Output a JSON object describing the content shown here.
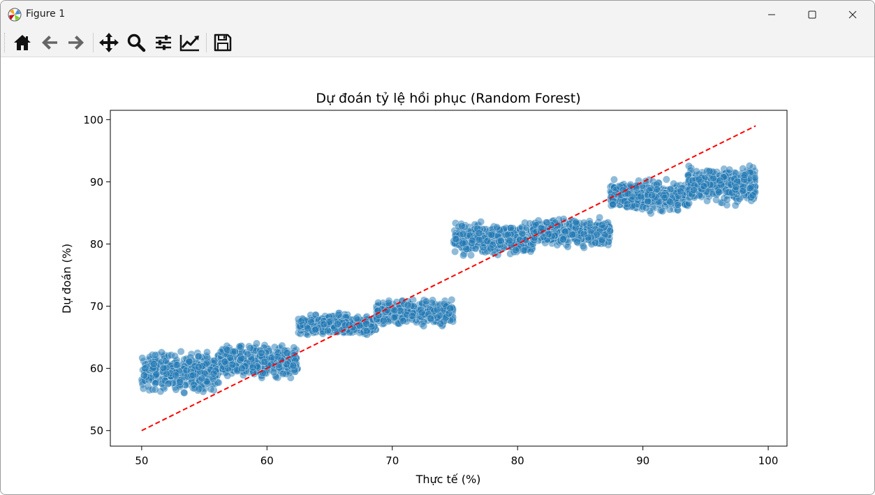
{
  "window": {
    "title": "Figure 1",
    "controls": {
      "minimize": "minimize",
      "maximize": "maximize",
      "close": "close"
    }
  },
  "toolbar": {
    "buttons": [
      {
        "name": "home-button",
        "icon": "home-icon"
      },
      {
        "name": "back-button",
        "icon": "arrow-left-icon"
      },
      {
        "name": "forward-button",
        "icon": "arrow-right-icon"
      },
      {
        "name": "pan-button",
        "icon": "move-icon"
      },
      {
        "name": "zoom-button",
        "icon": "magnifier-icon"
      },
      {
        "name": "configure-subplots-button",
        "icon": "sliders-icon"
      },
      {
        "name": "edit-axis-button",
        "icon": "line-chart-icon"
      },
      {
        "name": "save-button",
        "icon": "floppy-disk-icon"
      }
    ]
  },
  "chart_data": {
    "type": "scatter",
    "title": "Dự đoán tỷ lệ hồi phục (Random Forest)",
    "xlabel": "Thực tế (%)",
    "ylabel": "Dự đoán (%)",
    "xlim": [
      47.5,
      101.5
    ],
    "ylim": [
      47.5,
      101.5
    ],
    "xticks": [
      "50",
      "60",
      "70",
      "80",
      "90",
      "100"
    ],
    "yticks": [
      "50",
      "60",
      "70",
      "80",
      "90",
      "100"
    ],
    "grid": false,
    "legend": "none",
    "scatter_color": "#1f77b4",
    "reference_line": {
      "x": [
        50,
        99
      ],
      "y": [
        50,
        99
      ],
      "color": "#ff0000",
      "style": "dashed"
    },
    "clusters": [
      {
        "x_range": [
          50,
          56.3
        ],
        "y_range": [
          55.5,
          63.5
        ]
      },
      {
        "x_range": [
          56.3,
          62.5
        ],
        "y_range": [
          57.5,
          64.5
        ]
      },
      {
        "x_range": [
          62.5,
          68.7
        ],
        "y_range": [
          64.8,
          69.2
        ]
      },
      {
        "x_range": [
          68.7,
          74.9
        ],
        "y_range": [
          66.5,
          71.5
        ]
      },
      {
        "x_range": [
          74.9,
          81.2
        ],
        "y_range": [
          77.5,
          84.0
        ]
      },
      {
        "x_range": [
          81.2,
          87.4
        ],
        "y_range": [
          79.0,
          84.8
        ]
      },
      {
        "x_range": [
          87.4,
          93.6
        ],
        "y_range": [
          84.5,
          90.8
        ]
      },
      {
        "x_range": [
          93.6,
          99
        ],
        "y_range": [
          86.0,
          93.0
        ]
      }
    ]
  }
}
